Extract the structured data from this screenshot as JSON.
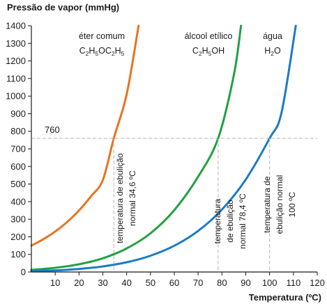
{
  "chart_data": {
    "type": "line",
    "title": "",
    "ylabel": "Pressão de vapor (mmHg)",
    "xlabel": "Temperatura (ºC)",
    "xlim": [
      0,
      120
    ],
    "ylim": [
      0,
      1400
    ],
    "x_ticks": [
      10,
      20,
      30,
      40,
      50,
      60,
      70,
      80,
      90,
      100,
      110,
      120
    ],
    "y_ticks": [
      0,
      100,
      200,
      300,
      400,
      500,
      600,
      700,
      800,
      900,
      1000,
      1100,
      1200,
      1300,
      1400
    ],
    "grid": false,
    "reference_line": {
      "y": 760,
      "label": "760",
      "style": "dashed"
    },
    "series": [
      {
        "name": "éter comum",
        "formula": [
          {
            "t": "C",
            "sub": false
          },
          {
            "t": "2",
            "sub": true
          },
          {
            "t": "H",
            "sub": false
          },
          {
            "t": "5",
            "sub": true
          },
          {
            "t": "OC",
            "sub": false
          },
          {
            "t": "2",
            "sub": true
          },
          {
            "t": "H",
            "sub": false
          },
          {
            "t": "5",
            "sub": true
          }
        ],
        "color": "#e8731f",
        "boiling_point": 34.6,
        "annotation": [
          "temperatura de ebulição",
          "normal 34,6 ºC"
        ],
        "points": [
          [
            0,
            150
          ],
          [
            5,
            186
          ],
          [
            10,
            230
          ],
          [
            15,
            284
          ],
          [
            20,
            350
          ],
          [
            25,
            430
          ],
          [
            30,
            523
          ],
          [
            34.6,
            760
          ],
          [
            40,
            1010
          ],
          [
            45,
            1400
          ]
        ]
      },
      {
        "name": "álcool etílico",
        "formula": [
          {
            "t": "C",
            "sub": false
          },
          {
            "t": "2",
            "sub": true
          },
          {
            "t": "H",
            "sub": false
          },
          {
            "t": "5",
            "sub": true
          },
          {
            "t": "OH",
            "sub": false
          }
        ],
        "color": "#22a040",
        "boiling_point": 78.4,
        "annotation": [
          "temperatura",
          "de ebulição",
          "normal 78,4 ºC"
        ],
        "points": [
          [
            0,
            12
          ],
          [
            10,
            24
          ],
          [
            20,
            44
          ],
          [
            30,
            78
          ],
          [
            40,
            134
          ],
          [
            50,
            220
          ],
          [
            60,
            352
          ],
          [
            70,
            542
          ],
          [
            78.4,
            760
          ],
          [
            85,
            1120
          ],
          [
            88,
            1400
          ]
        ]
      },
      {
        "name": "água",
        "formula": [
          {
            "t": "H",
            "sub": false
          },
          {
            "t": "2",
            "sub": true
          },
          {
            "t": "O",
            "sub": false
          }
        ],
        "color": "#1a7bc4",
        "boiling_point": 100,
        "annotation": [
          "temperatura de",
          "ebulição normal",
          "100 ºC"
        ],
        "points": [
          [
            0,
            4.6
          ],
          [
            10,
            9.2
          ],
          [
            20,
            17.5
          ],
          [
            30,
            31.8
          ],
          [
            40,
            55.3
          ],
          [
            50,
            92.5
          ],
          [
            60,
            149.4
          ],
          [
            70,
            233.7
          ],
          [
            80,
            355.1
          ],
          [
            90,
            525.8
          ],
          [
            100,
            760
          ],
          [
            105,
            906
          ],
          [
            111,
            1400
          ]
        ]
      }
    ]
  }
}
